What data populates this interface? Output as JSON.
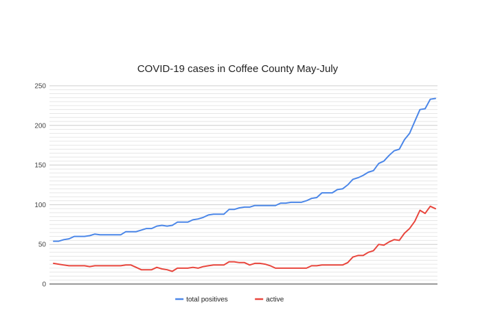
{
  "chart_data": {
    "type": "line",
    "title": "COVID-19 cases in Coffee County May-July",
    "xlabel": "",
    "ylabel": "",
    "ylim": [
      0,
      250
    ],
    "yticks": [
      0,
      50,
      100,
      150,
      200,
      250
    ],
    "minor_gridlines": true,
    "legend_position": "bottom",
    "series": [
      {
        "name": "total positives",
        "color": "#4a86e8",
        "values": [
          54,
          54,
          56,
          57,
          60,
          60,
          60,
          61,
          63,
          62,
          62,
          62,
          62,
          62,
          66,
          66,
          66,
          68,
          70,
          70,
          73,
          74,
          73,
          74,
          78,
          78,
          78,
          81,
          82,
          84,
          87,
          88,
          88,
          88,
          94,
          94,
          96,
          97,
          97,
          99,
          99,
          99,
          99,
          99,
          102,
          102,
          103,
          103,
          103,
          105,
          108,
          109,
          115,
          115,
          115,
          119,
          120,
          125,
          132,
          134,
          137,
          141,
          143,
          152,
          155,
          162,
          168,
          170,
          182,
          190,
          205,
          220,
          221,
          233,
          234
        ]
      },
      {
        "name": "active",
        "color": "#e8453c",
        "values": [
          26,
          25,
          24,
          23,
          23,
          23,
          23,
          22,
          23,
          23,
          23,
          23,
          23,
          23,
          24,
          24,
          21,
          18,
          18,
          18,
          21,
          19,
          18,
          16,
          20,
          20,
          20,
          21,
          20,
          22,
          23,
          24,
          24,
          24,
          28,
          28,
          27,
          27,
          24,
          26,
          26,
          25,
          23,
          20,
          20,
          20,
          20,
          20,
          20,
          20,
          23,
          23,
          24,
          24,
          24,
          24,
          24,
          27,
          34,
          36,
          36,
          40,
          42,
          50,
          49,
          53,
          56,
          55,
          64,
          70,
          79,
          93,
          89,
          98,
          95
        ]
      }
    ]
  }
}
